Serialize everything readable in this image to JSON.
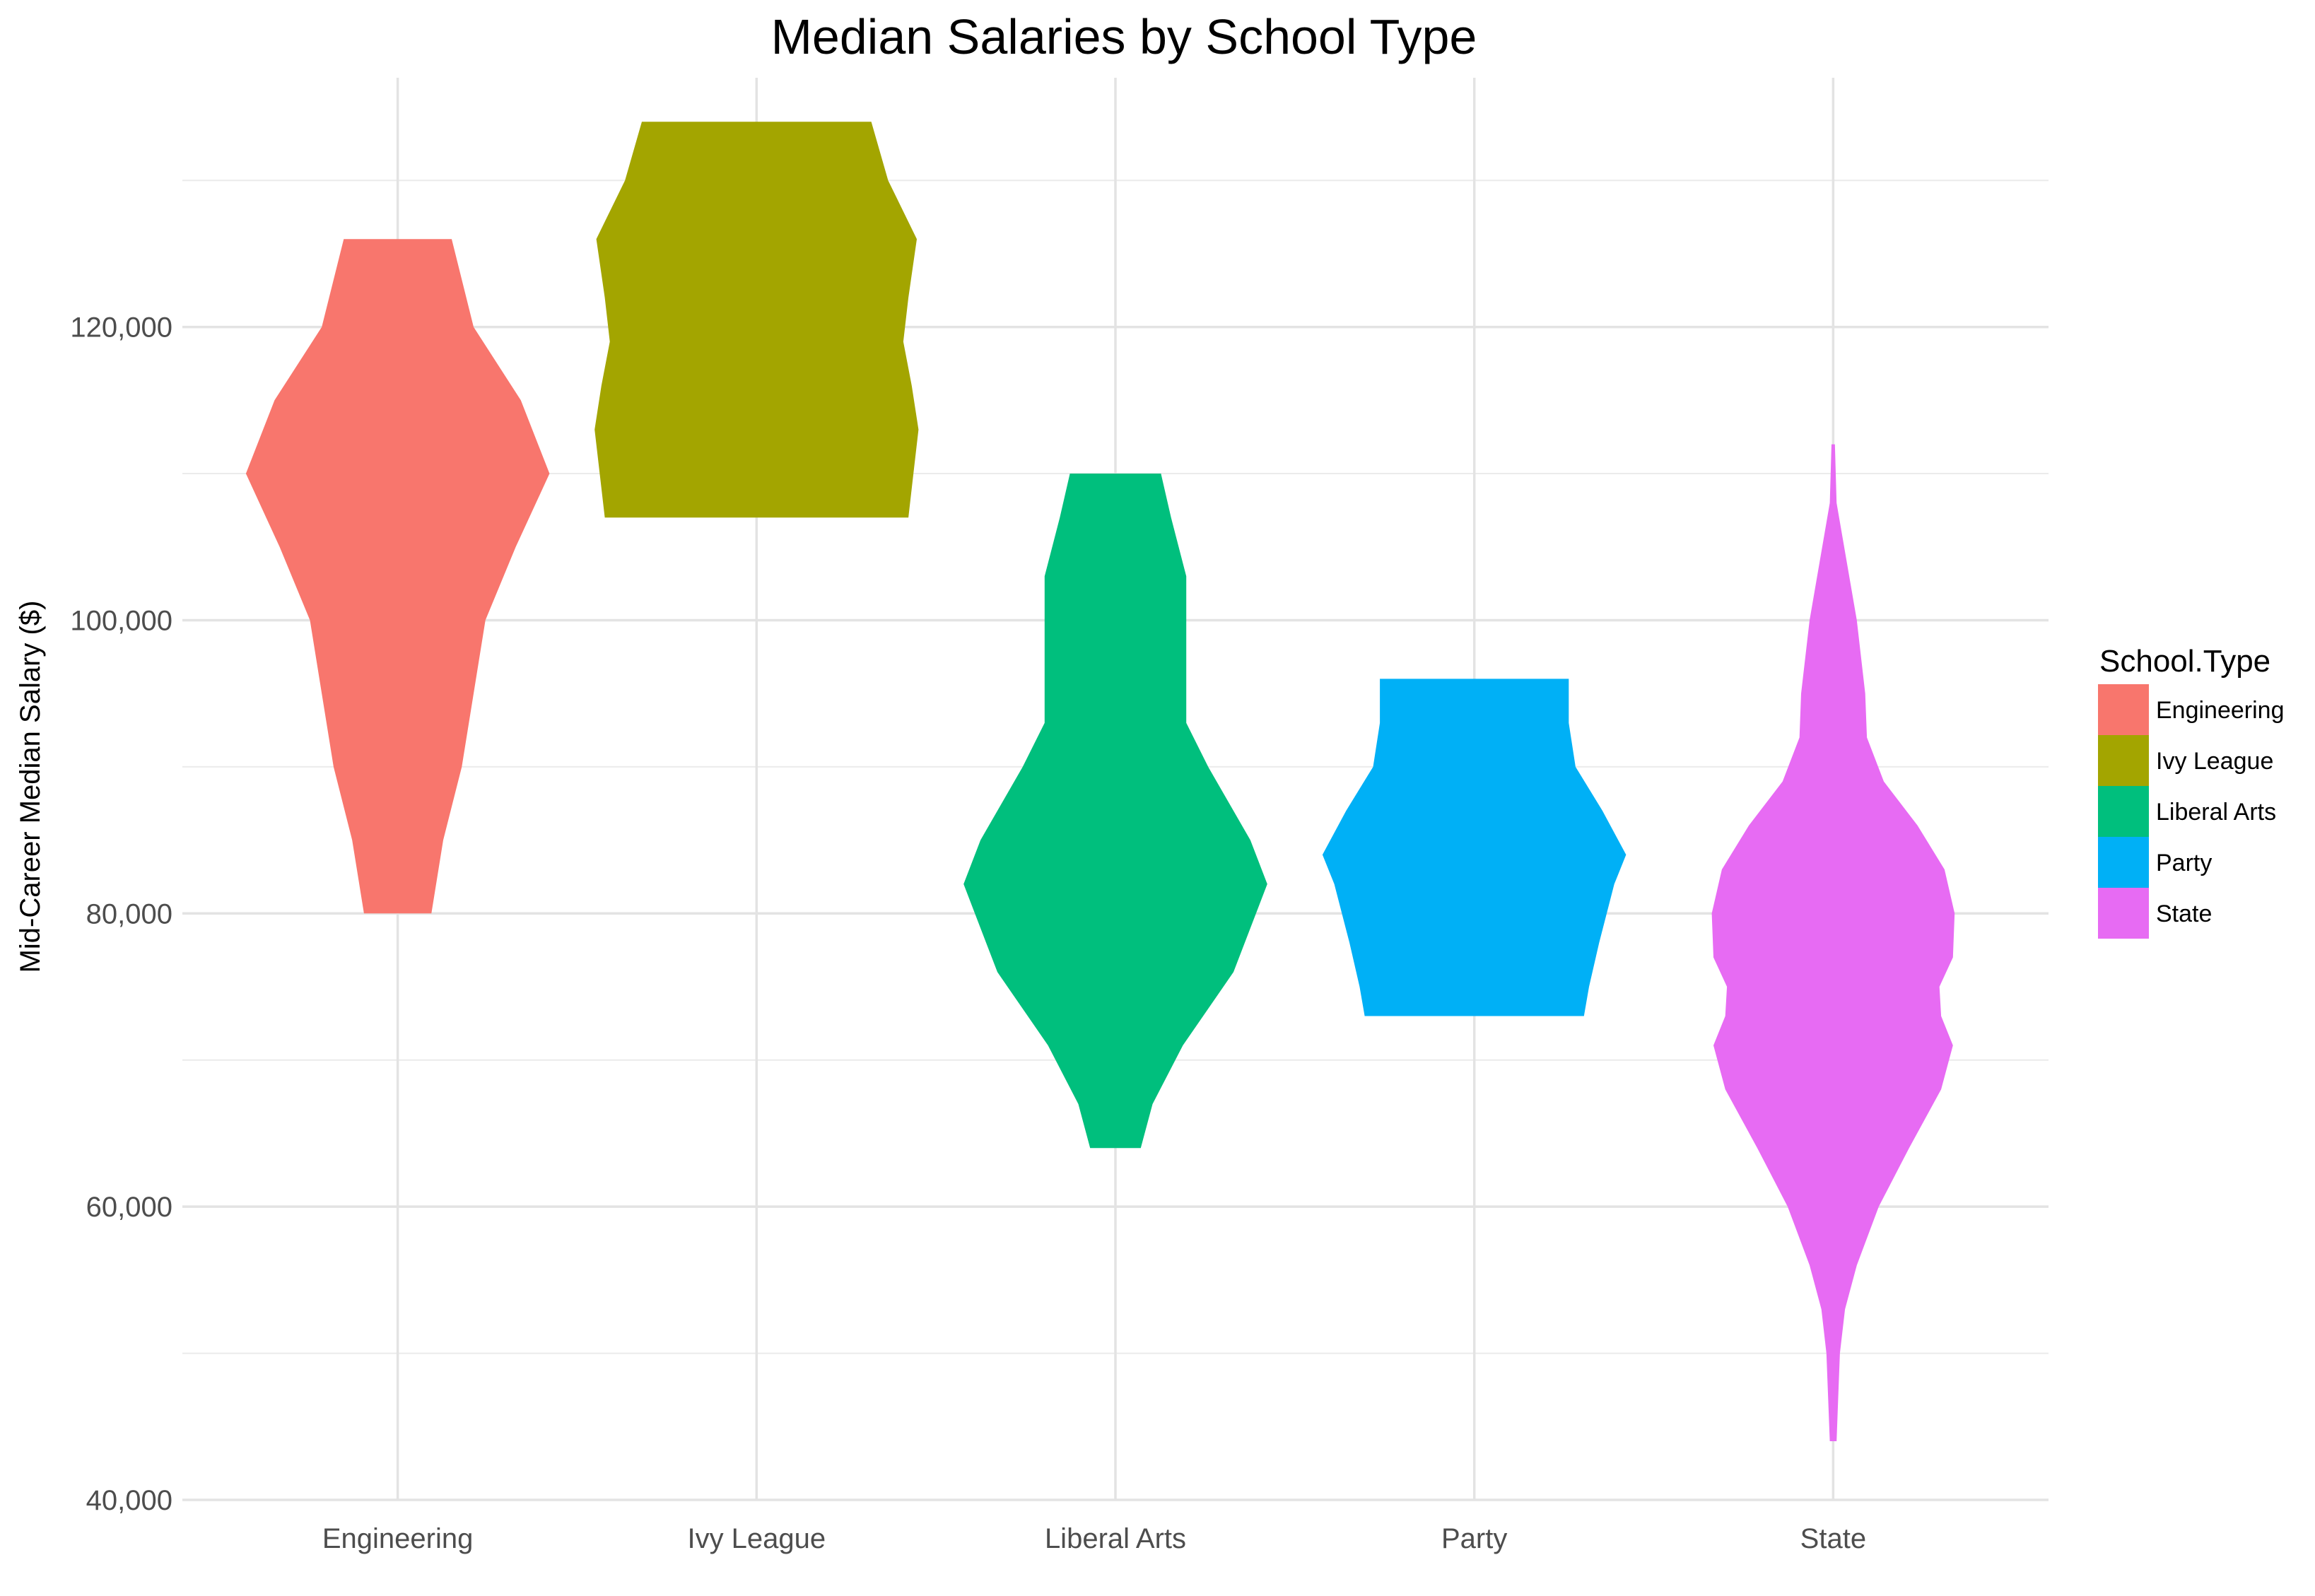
{
  "chart_data": {
    "type": "violin",
    "title": "Median Salaries by School Type",
    "xlabel": "",
    "ylabel": "Mid-Career Median Salary ($)",
    "ylim": [
      40000,
      137000
    ],
    "y_ticks": [
      {
        "value": 40000,
        "label": "40,000"
      },
      {
        "value": 60000,
        "label": "60,000"
      },
      {
        "value": 80000,
        "label": "80,000"
      },
      {
        "value": 100000,
        "label": "100,000"
      },
      {
        "value": 120000,
        "label": "120,000"
      }
    ],
    "y_minor_ticks": [
      50000,
      70000,
      90000,
      110000,
      130000
    ],
    "grid": true,
    "legend": {
      "title": "School.Type",
      "placement": "right"
    },
    "categories": [
      "Engineering",
      "Ivy League",
      "Liberal Arts",
      "Party",
      "State"
    ],
    "series": [
      {
        "name": "Engineering",
        "color": "#F8766D",
        "profile": [
          [
            80000,
            0.2
          ],
          [
            85000,
            0.27
          ],
          [
            90000,
            0.38
          ],
          [
            95000,
            0.45
          ],
          [
            100000,
            0.52
          ],
          [
            105000,
            0.7
          ],
          [
            110000,
            0.9
          ],
          [
            115000,
            0.73
          ],
          [
            120000,
            0.45
          ],
          [
            126000,
            0.32
          ]
        ]
      },
      {
        "name": "Ivy League",
        "color": "#A3A500",
        "profile": [
          [
            107000,
            0.9
          ],
          [
            110000,
            0.93
          ],
          [
            113000,
            0.96
          ],
          [
            116000,
            0.92
          ],
          [
            119000,
            0.87
          ],
          [
            122000,
            0.9
          ],
          [
            126000,
            0.95
          ],
          [
            130000,
            0.78
          ],
          [
            134000,
            0.68
          ]
        ]
      },
      {
        "name": "Liberal Arts",
        "color": "#00BF7D",
        "profile": [
          [
            64000,
            0.15
          ],
          [
            67000,
            0.22
          ],
          [
            71000,
            0.4
          ],
          [
            76000,
            0.7
          ],
          [
            82000,
            0.9
          ],
          [
            85000,
            0.8
          ],
          [
            90000,
            0.55
          ],
          [
            93000,
            0.42
          ],
          [
            97000,
            0.42
          ],
          [
            103000,
            0.42
          ],
          [
            107000,
            0.33
          ],
          [
            110000,
            0.27
          ]
        ]
      },
      {
        "name": "Party",
        "color": "#00B0F6",
        "profile": [
          [
            73000,
            0.65
          ],
          [
            75000,
            0.68
          ],
          [
            78000,
            0.74
          ],
          [
            82000,
            0.83
          ],
          [
            84000,
            0.9
          ],
          [
            87000,
            0.76
          ],
          [
            90000,
            0.6
          ],
          [
            93000,
            0.56
          ],
          [
            96000,
            0.56
          ]
        ]
      },
      {
        "name": "State",
        "color": "#E76BF3",
        "profile": [
          [
            44000,
            0.02
          ],
          [
            47000,
            0.03
          ],
          [
            50000,
            0.04
          ],
          [
            53000,
            0.07
          ],
          [
            56000,
            0.14
          ],
          [
            60000,
            0.27
          ],
          [
            64000,
            0.45
          ],
          [
            68000,
            0.64
          ],
          [
            71000,
            0.71
          ],
          [
            73000,
            0.64
          ],
          [
            75000,
            0.63
          ],
          [
            77000,
            0.71
          ],
          [
            80000,
            0.72
          ],
          [
            83000,
            0.66
          ],
          [
            86000,
            0.5
          ],
          [
            89000,
            0.3
          ],
          [
            92000,
            0.2
          ],
          [
            95000,
            0.19
          ],
          [
            100000,
            0.14
          ],
          [
            104000,
            0.08
          ],
          [
            108000,
            0.02
          ],
          [
            112000,
            0.01
          ]
        ]
      }
    ]
  }
}
